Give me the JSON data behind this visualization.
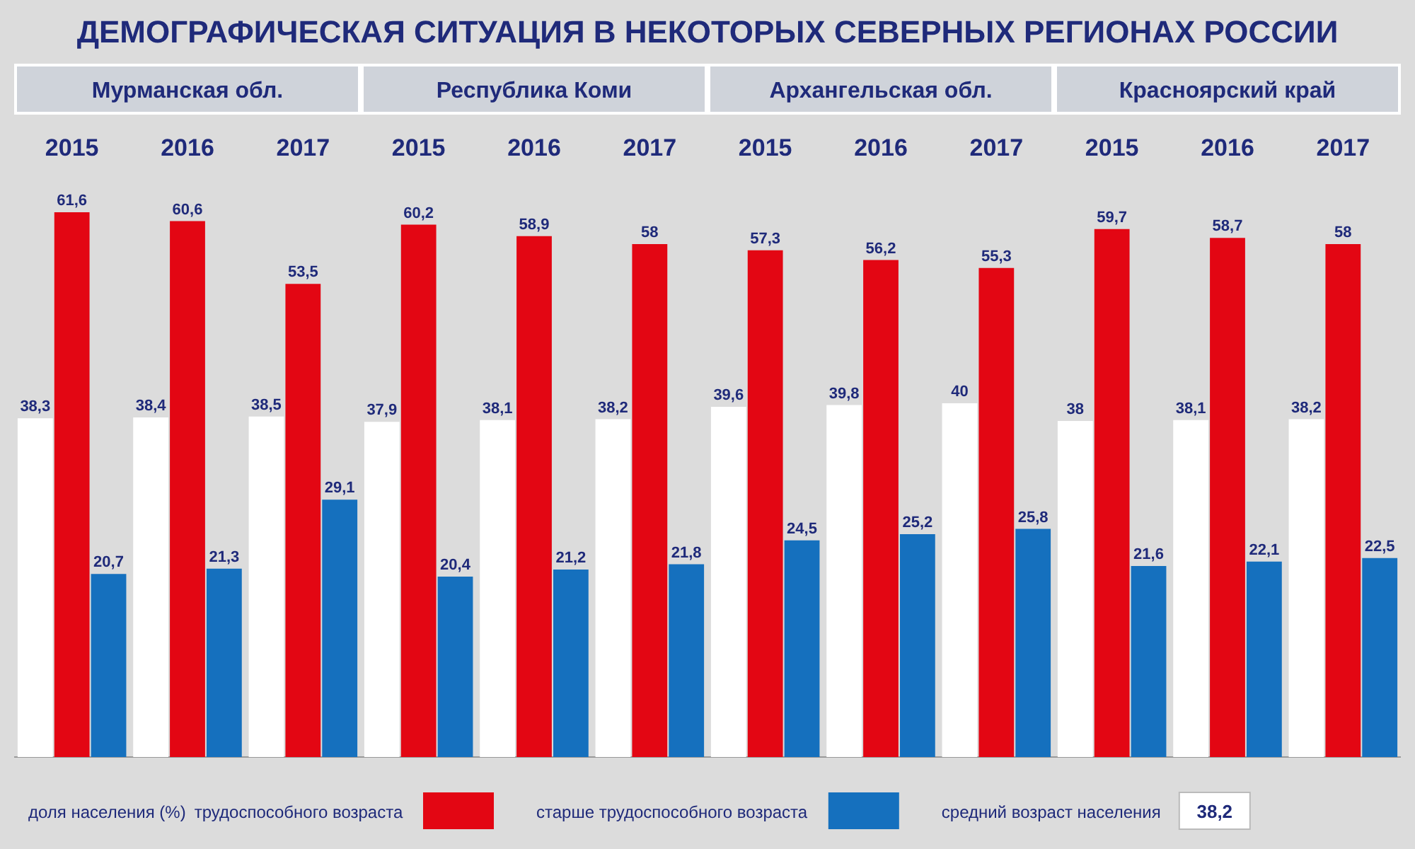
{
  "chart_data": {
    "type": "bar",
    "title": "ДЕМОГРАФИЧЕСКАЯ СИТУАЦИЯ В НЕКОТОРЫХ СЕВЕРНЫХ РЕГИОНАХ РОССИИ",
    "categories": [
      "2015",
      "2016",
      "2017",
      "2015",
      "2016",
      "2017",
      "2015",
      "2016",
      "2017",
      "2015",
      "2016",
      "2017"
    ],
    "annotations": [
      "Мурманская обл.",
      "Республика Коми",
      "Архангельская обл.",
      "Красноярский край",
      "38,2"
    ],
    "legend_title": "доля населения (%)",
    "legend": "bottom",
    "series": [
      {
        "name": "средний возраст населения",
        "color": "#ffffff",
        "values": [
          38.3,
          38.4,
          38.5,
          37.9,
          38.1,
          38.2,
          39.6,
          39.8,
          40,
          38,
          38.1,
          38.2
        ],
        "value_labels": [
          "38,3",
          "38,4",
          "38,5",
          "37,9",
          "38,1",
          "38,2",
          "39,6",
          "39,8",
          "40",
          "38",
          "38,1",
          "38,2"
        ]
      },
      {
        "name": "трудоспособного возраста",
        "color": "#e30613",
        "values": [
          61.6,
          60.6,
          53.5,
          60.2,
          58.9,
          58,
          57.3,
          56.2,
          55.3,
          59.7,
          58.7,
          58
        ],
        "value_labels": [
          "61,6",
          "60,6",
          "53,5",
          "60,2",
          "58,9",
          "58",
          "57,3",
          "56,2",
          "55,3",
          "59,7",
          "58,7",
          "58"
        ]
      },
      {
        "name": "старше трудоспособного возраста",
        "color": "#1570be",
        "values": [
          20.7,
          21.3,
          29.1,
          20.4,
          21.2,
          21.8,
          24.5,
          25.2,
          25.8,
          21.6,
          22.1,
          22.5
        ],
        "value_labels": [
          "20,7",
          "21,3",
          "29,1",
          "20,4",
          "21,2",
          "21,8",
          "24,5",
          "25,2",
          "25,8",
          "21,6",
          "22,1",
          "22,5"
        ]
      }
    ]
  }
}
